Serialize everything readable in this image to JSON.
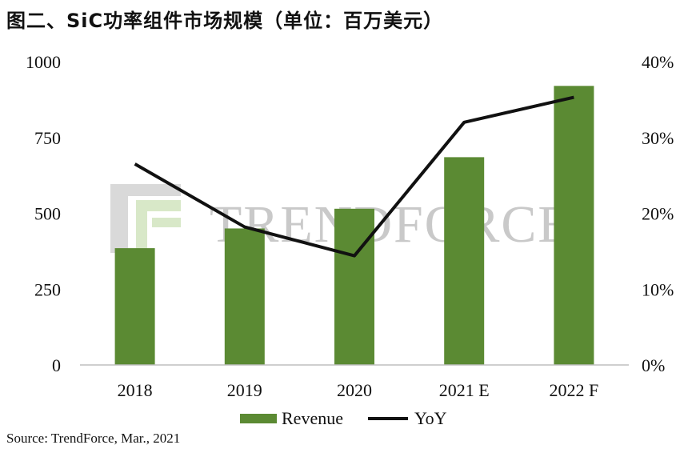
{
  "title": "图二、SiC功率组件市场规模（单位：百万美元）",
  "source": "Source: TrendForce, Mar., 2021",
  "watermark": "TRENDFORCE",
  "colors": {
    "bar": "#5b8a33",
    "line": "#111111",
    "axis": "#bfbfbf"
  },
  "chart_data": {
    "type": "bar",
    "categories": [
      "2018",
      "2019",
      "2020",
      "2021 E",
      "2022 F"
    ],
    "series": [
      {
        "name": "Revenue",
        "type": "bar",
        "axis": "left",
        "values": [
          385,
          450,
          515,
          685,
          920
        ]
      },
      {
        "name": "YoY",
        "type": "line",
        "axis": "right",
        "values": [
          26.5,
          18.2,
          14.4,
          32.0,
          35.3
        ]
      }
    ],
    "y_left": {
      "min": 0,
      "max": 1000,
      "ticks": [
        "0",
        "250",
        "500",
        "750",
        "1000"
      ]
    },
    "y_right": {
      "min": 0,
      "max": 40,
      "ticks": [
        "0%",
        "10%",
        "20%",
        "30%",
        "40%"
      ]
    },
    "grid": false,
    "legend_position": "bottom"
  }
}
